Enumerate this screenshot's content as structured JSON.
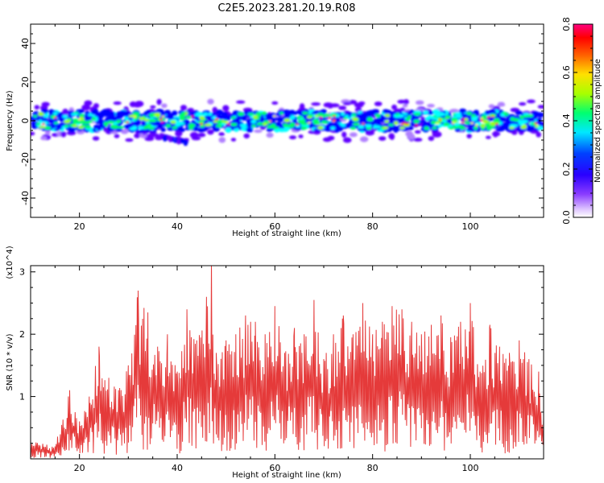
{
  "title": "C2E5.2023.281.20.19.R08",
  "chart_data": [
    {
      "type": "heatmap",
      "xlabel": "Height of straight line (km)",
      "ylabel": "Frequency (Hz)",
      "xlim": [
        10,
        115
      ],
      "ylim": [
        -50,
        50
      ],
      "xticks": [
        20,
        40,
        60,
        80,
        100
      ],
      "yticks": [
        40,
        20,
        0,
        -20,
        -40
      ],
      "colorbar": {
        "label": "Normalized spectral amplitude",
        "range": [
          0.0,
          0.8
        ],
        "ticks": [
          0.0,
          0.2,
          0.4,
          0.6,
          0.8
        ],
        "colors": [
          "#ffffff",
          "#b080ff",
          "#6000ff",
          "#0000ff",
          "#00ffff",
          "#00ff60",
          "#a0ff00",
          "#ffff00",
          "#ff8000",
          "#ff0000",
          "#ff0080"
        ]
      },
      "band": {
        "center_hz": 0,
        "half_width_hz": 5,
        "tail": {
          "x_range": [
            30,
            42
          ],
          "min_freq_hz": -13
        }
      }
    },
    {
      "type": "line",
      "xlabel": "Height of straight line (km)",
      "ylabel": "SNR (10 * v/v)",
      "y_multiplier": "(x10^4)",
      "xlim": [
        10,
        115
      ],
      "ylim": [
        0,
        3.1
      ],
      "xticks": [
        20,
        40,
        60,
        80,
        100
      ],
      "yticks": [
        1,
        2,
        3
      ],
      "color": "#e53a3a",
      "x": [
        10,
        15,
        18,
        20,
        22,
        24,
        26,
        28,
        30,
        32,
        34,
        36,
        38,
        40,
        42,
        44,
        46,
        47,
        48,
        50,
        52,
        54,
        56,
        58,
        60,
        62,
        64,
        66,
        68,
        70,
        72,
        74,
        76,
        78,
        80,
        82,
        84,
        86,
        88,
        90,
        92,
        94,
        96,
        98,
        100,
        102,
        104,
        106,
        108,
        110,
        112,
        114,
        115
      ],
      "y": [
        0.3,
        0.2,
        1.1,
        0.6,
        1.0,
        1.8,
        1.3,
        1.1,
        1.5,
        2.7,
        2.35,
        1.8,
        2.0,
        1.4,
        2.4,
        1.9,
        2.6,
        3.1,
        1.7,
        1.9,
        2.0,
        2.3,
        2.2,
        2.0,
        2.45,
        1.7,
        2.1,
        2.0,
        2.55,
        1.6,
        2.0,
        2.3,
        2.0,
        2.5,
        2.0,
        2.2,
        2.45,
        2.4,
        2.2,
        2.0,
        2.15,
        2.3,
        1.95,
        2.2,
        2.5,
        1.4,
        2.15,
        1.8,
        1.7,
        1.9,
        1.6,
        1.4,
        0.7
      ]
    }
  ]
}
